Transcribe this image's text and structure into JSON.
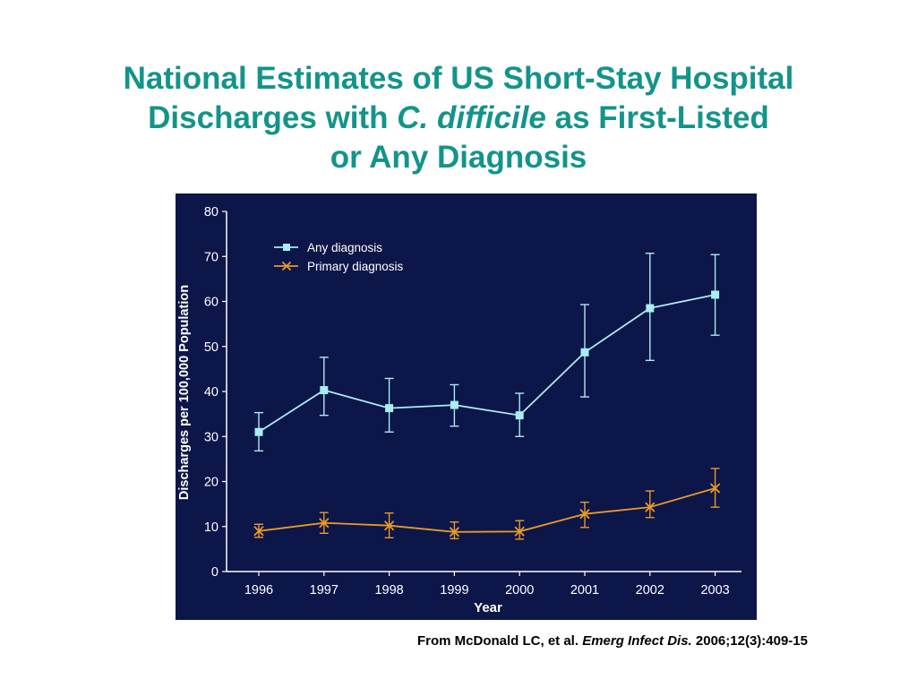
{
  "slide": {
    "title_line1": "National Estimates of US Short-Stay Hospital",
    "title_line2_pre": "Discharges with ",
    "title_line2_italic": "C. difficile",
    "title_line2_post": " as First-Listed",
    "title_line3": "or Any Diagnosis",
    "citation_pre": "From McDonald LC, et al. ",
    "citation_journal": "Emerg Infect Dis.",
    "citation_post": " 2006;12(3):409-15"
  },
  "colors": {
    "title": "#13948a",
    "panel_background": "#0d1648",
    "axis": "#ffffff",
    "any_diagnosis": "#a9ecf2",
    "primary_diagnosis": "#e89a2a"
  },
  "chart_data": {
    "type": "line",
    "title": "",
    "xlabel": "Year",
    "ylabel": "Discharges per 100,000 Population",
    "ylim": [
      0,
      80
    ],
    "yticks": [
      0,
      10,
      20,
      30,
      40,
      50,
      60,
      70,
      80
    ],
    "grid": false,
    "legend_placement": "top-left",
    "categories": [
      "1996",
      "1997",
      "1998",
      "1999",
      "2000",
      "2001",
      "2002",
      "2003"
    ],
    "series": [
      {
        "name": "Any diagnosis",
        "marker": "square",
        "values": [
          31,
          40.3,
          36.3,
          37,
          34.7,
          48.7,
          58.5,
          61.5
        ],
        "error_low": [
          26.8,
          34.7,
          31,
          32.3,
          30,
          38.8,
          46.9,
          52.5
        ],
        "error_high": [
          35.3,
          47.6,
          42.9,
          41.5,
          39.6,
          59.3,
          70.7,
          70.4
        ]
      },
      {
        "name": "Primary diagnosis",
        "marker": "x",
        "values": [
          9,
          10.8,
          10.2,
          8.8,
          8.9,
          12.8,
          14.3,
          18.5
        ],
        "error_low": [
          7.6,
          8.5,
          7.5,
          7.3,
          7.2,
          9.8,
          12,
          14.3
        ],
        "error_high": [
          10.5,
          13.1,
          13,
          11,
          11.3,
          15.4,
          17.9,
          22.9
        ]
      }
    ]
  }
}
